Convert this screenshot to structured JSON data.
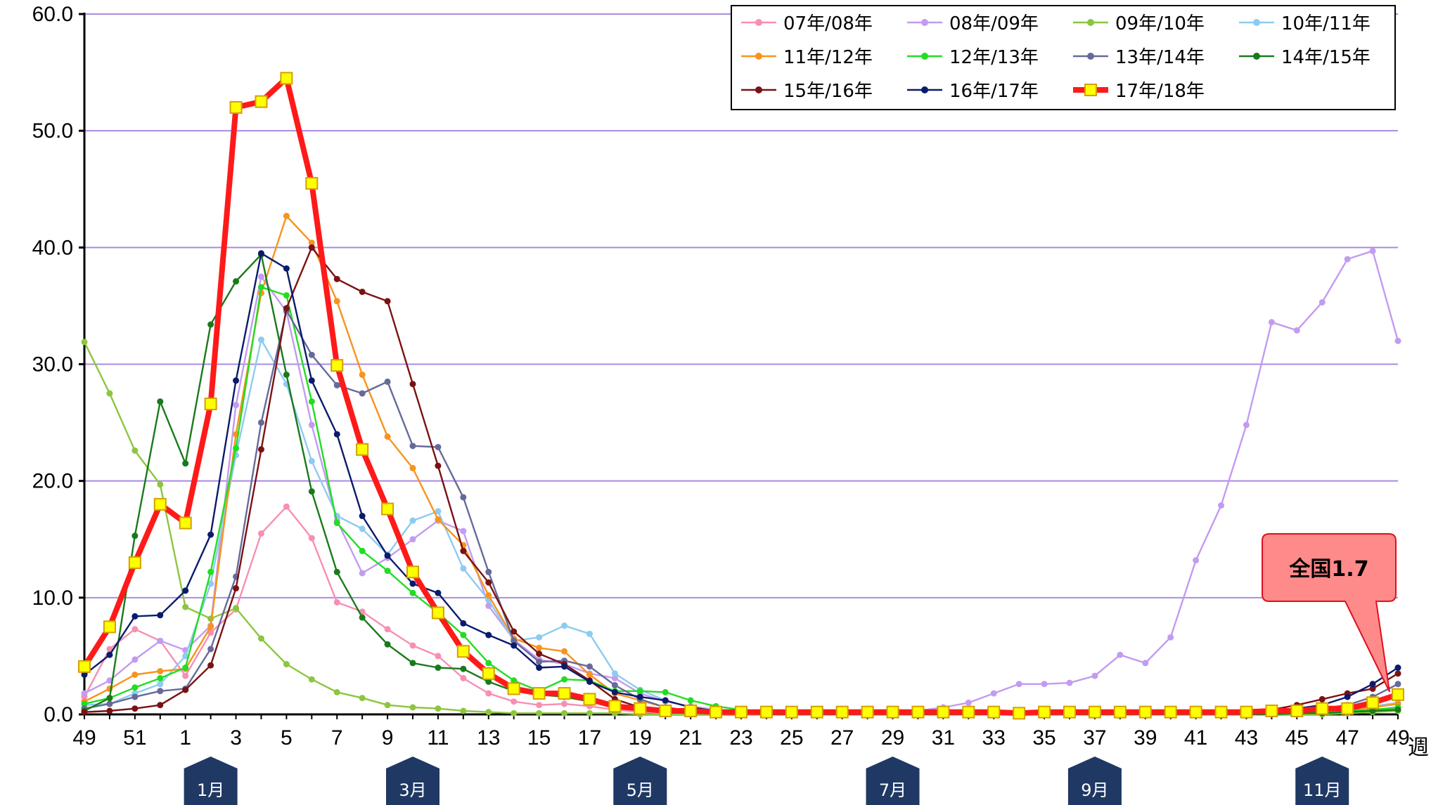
{
  "chart_data": {
    "type": "line",
    "xlabel": "週",
    "ylim": [
      0,
      60
    ],
    "yticks": [
      "0.0",
      "10.0",
      "20.0",
      "30.0",
      "40.0",
      "50.0",
      "60.0"
    ],
    "grid": true,
    "legend_position": "top-right",
    "x": [
      "49",
      "50",
      "51",
      "52",
      "1",
      "2",
      "3",
      "4",
      "5",
      "6",
      "7",
      "8",
      "9",
      "10",
      "11",
      "12",
      "13",
      "14",
      "15",
      "16",
      "17",
      "18",
      "19",
      "20",
      "21",
      "22",
      "23",
      "24",
      "25",
      "26",
      "27",
      "28",
      "29",
      "30",
      "31",
      "32",
      "33",
      "34",
      "35",
      "36",
      "37",
      "38",
      "39",
      "40",
      "41",
      "42",
      "43",
      "44",
      "45",
      "46",
      "47",
      "48",
      "49"
    ],
    "xtick_labels": [
      "49",
      "51",
      "1",
      "3",
      "5",
      "7",
      "9",
      "11",
      "13",
      "15",
      "17",
      "19",
      "21",
      "23",
      "25",
      "27",
      "29",
      "31",
      "33",
      "35",
      "37",
      "39",
      "41",
      "43",
      "45",
      "47",
      "49"
    ],
    "months": [
      {
        "label": "1月",
        "week": "2"
      },
      {
        "label": "3月",
        "week": "10"
      },
      {
        "label": "5月",
        "week": "19"
      },
      {
        "label": "7月",
        "week": "29"
      },
      {
        "label": "9月",
        "week": "37"
      },
      {
        "label": "11月",
        "week": "46"
      }
    ],
    "series": [
      {
        "name": "07年/08年",
        "color": "#f78fb3",
        "values": [
          1.5,
          5.6,
          7.3,
          6.3,
          3.3,
          7.0,
          9.0,
          15.5,
          17.8,
          15.1,
          9.6,
          8.8,
          7.3,
          5.9,
          5.0,
          3.1,
          1.8,
          1.1,
          0.8,
          0.9,
          0.7,
          0.4,
          0.2,
          0.1,
          0.1,
          0.1,
          0.0,
          0.0,
          0.0,
          0.0,
          0.0,
          0.0,
          0.0,
          0.0,
          0.0,
          0.0,
          0.0,
          0.0,
          0.0,
          0.0,
          0.0,
          0.0,
          0.0,
          0.0,
          0.0,
          0.0,
          0.0,
          0.0,
          0.1,
          0.1,
          0.2,
          0.4,
          0.5
        ]
      },
      {
        "name": "08年/09年",
        "color": "#c39bf0",
        "values": [
          1.8,
          2.9,
          4.7,
          6.3,
          5.5,
          7.6,
          26.5,
          37.5,
          34.5,
          24.8,
          16.6,
          12.1,
          13.4,
          15.0,
          16.6,
          15.7,
          9.3,
          6.4,
          4.7,
          4.3,
          3.5,
          3.1,
          1.8,
          1.1,
          0.7,
          0.4,
          0.2,
          0.1,
          0.1,
          0.1,
          0.1,
          0.1,
          0.1,
          0.3,
          0.6,
          1.0,
          1.8,
          2.6,
          2.6,
          2.7,
          3.3,
          5.1,
          4.4,
          6.6,
          13.2,
          17.9,
          24.8,
          33.6,
          32.9,
          35.3,
          39.0,
          39.7,
          32.0
        ]
      },
      {
        "name": "09年/10年",
        "color": "#8cc63f",
        "values": [
          31.9,
          27.5,
          22.6,
          19.7,
          9.2,
          8.2,
          9.1,
          6.5,
          4.3,
          3.0,
          1.9,
          1.4,
          0.8,
          0.6,
          0.5,
          0.3,
          0.2,
          0.1,
          0.1,
          0.1,
          0.1,
          0.1,
          0.0,
          0.0,
          0.0,
          0.0,
          0.0,
          0.0,
          0.0,
          0.0,
          0.0,
          0.0,
          0.0,
          0.0,
          0.0,
          0.0,
          0.0,
          0.0,
          0.0,
          0.0,
          0.0,
          0.0,
          0.0,
          0.0,
          0.0,
          0.0,
          0.0,
          0.0,
          0.0,
          0.0,
          0.1,
          0.2,
          0.3
        ]
      },
      {
        "name": "10年/11年",
        "color": "#8ecbf0",
        "values": [
          0.8,
          0.9,
          1.8,
          2.6,
          5.0,
          11.2,
          22.2,
          32.1,
          28.3,
          21.7,
          17.0,
          15.9,
          13.7,
          16.6,
          17.4,
          12.5,
          9.8,
          6.3,
          6.6,
          7.6,
          6.9,
          3.5,
          2.1,
          1.2,
          0.6,
          0.4,
          0.3,
          0.2,
          0.1,
          0.1,
          0.1,
          0.1,
          0.1,
          0.1,
          0.1,
          0.1,
          0.1,
          0.1,
          0.1,
          0.1,
          0.1,
          0.1,
          0.1,
          0.1,
          0.1,
          0.1,
          0.1,
          0.2,
          0.2,
          0.3,
          0.5,
          0.7,
          1.0
        ]
      },
      {
        "name": "11年/12年",
        "color": "#f7941d",
        "values": [
          1.1,
          2.2,
          3.4,
          3.7,
          3.9,
          7.5,
          24.0,
          36.1,
          42.7,
          40.4,
          35.4,
          29.1,
          23.8,
          21.1,
          16.7,
          14.5,
          10.2,
          6.5,
          5.7,
          5.4,
          3.4,
          1.8,
          1.2,
          0.6,
          0.3,
          0.2,
          0.1,
          0.1,
          0.1,
          0.0,
          0.0,
          0.0,
          0.0,
          0.0,
          0.0,
          0.0,
          0.0,
          0.0,
          0.0,
          0.0,
          0.0,
          0.0,
          0.0,
          0.0,
          0.0,
          0.0,
          0.1,
          0.1,
          0.2,
          0.3,
          0.4,
          0.6,
          0.9
        ]
      },
      {
        "name": "12年/13年",
        "color": "#22dd22",
        "values": [
          0.9,
          1.4,
          2.3,
          3.1,
          4.0,
          12.2,
          22.8,
          36.6,
          35.9,
          26.8,
          16.4,
          14.0,
          12.3,
          10.4,
          8.7,
          6.8,
          4.4,
          2.9,
          2.0,
          3.0,
          2.9,
          2.0,
          2.0,
          1.9,
          1.2,
          0.7,
          0.4,
          0.2,
          0.1,
          0.1,
          0.1,
          0.1,
          0.1,
          0.1,
          0.1,
          0.1,
          0.1,
          0.1,
          0.1,
          0.1,
          0.1,
          0.1,
          0.1,
          0.1,
          0.1,
          0.1,
          0.1,
          0.1,
          0.1,
          0.2,
          0.3,
          0.4,
          0.6
        ]
      },
      {
        "name": "13年/14年",
        "color": "#666a99",
        "values": [
          0.5,
          0.9,
          1.5,
          2.0,
          2.2,
          5.6,
          11.8,
          25.0,
          34.6,
          30.8,
          28.2,
          27.5,
          28.5,
          23.0,
          22.9,
          18.6,
          12.2,
          6.3,
          4.5,
          4.6,
          4.1,
          2.5,
          1.3,
          0.6,
          0.3,
          0.2,
          0.1,
          0.1,
          0.1,
          0.1,
          0.1,
          0.1,
          0.1,
          0.1,
          0.1,
          0.1,
          0.1,
          0.1,
          0.1,
          0.1,
          0.1,
          0.1,
          0.1,
          0.1,
          0.1,
          0.1,
          0.1,
          0.2,
          0.3,
          0.5,
          0.8,
          1.5,
          2.6
        ]
      },
      {
        "name": "14年/15年",
        "color": "#1a7a1a",
        "values": [
          0.3,
          1.4,
          15.3,
          26.8,
          21.5,
          33.4,
          37.1,
          39.4,
          29.1,
          19.1,
          12.2,
          8.3,
          6.0,
          4.4,
          4.0,
          3.9,
          2.8,
          2.0,
          1.7,
          1.5,
          1.1,
          0.6,
          0.4,
          0.2,
          0.1,
          0.1,
          0.1,
          0.0,
          0.0,
          0.0,
          0.0,
          0.0,
          0.0,
          0.0,
          0.0,
          0.0,
          0.0,
          0.0,
          0.0,
          0.0,
          0.0,
          0.0,
          0.0,
          0.0,
          0.0,
          0.0,
          0.0,
          0.0,
          0.1,
          0.1,
          0.2,
          0.3,
          0.4
        ]
      },
      {
        "name": "15年/16年",
        "color": "#7b1113",
        "values": [
          0.2,
          0.3,
          0.5,
          0.8,
          2.1,
          4.2,
          10.8,
          22.7,
          34.8,
          40.0,
          37.3,
          36.2,
          35.4,
          28.3,
          21.3,
          14.0,
          11.3,
          7.1,
          5.2,
          4.3,
          2.9,
          1.3,
          0.6,
          0.3,
          0.2,
          0.1,
          0.1,
          0.1,
          0.1,
          0.1,
          0.1,
          0.1,
          0.1,
          0.1,
          0.1,
          0.1,
          0.1,
          0.1,
          0.1,
          0.1,
          0.1,
          0.1,
          0.1,
          0.1,
          0.1,
          0.1,
          0.2,
          0.4,
          0.8,
          1.3,
          1.8,
          2.2,
          3.5
        ]
      },
      {
        "name": "16年/17年",
        "color": "#0b1b6b",
        "values": [
          3.4,
          5.1,
          8.4,
          8.5,
          10.6,
          15.4,
          28.6,
          39.5,
          38.2,
          28.6,
          24.0,
          17.0,
          13.6,
          11.2,
          10.4,
          7.8,
          6.8,
          5.9,
          4.0,
          4.1,
          2.8,
          1.9,
          1.5,
          1.2,
          0.6,
          0.3,
          0.2,
          0.1,
          0.1,
          0.1,
          0.1,
          0.1,
          0.1,
          0.1,
          0.1,
          0.1,
          0.1,
          0.1,
          0.1,
          0.1,
          0.1,
          0.1,
          0.1,
          0.1,
          0.1,
          0.1,
          0.2,
          0.3,
          0.5,
          0.8,
          1.5,
          2.6,
          4.0
        ]
      },
      {
        "name": "17年/18年",
        "color": "#ff1a1a",
        "values": [
          4.1,
          7.5,
          13.0,
          18.0,
          16.4,
          26.6,
          52.0,
          52.5,
          54.5,
          45.5,
          29.9,
          22.7,
          17.6,
          12.2,
          8.7,
          5.4,
          3.5,
          2.2,
          1.8,
          1.8,
          1.3,
          0.7,
          0.5,
          0.3,
          0.3,
          0.2,
          0.2,
          0.2,
          0.2,
          0.2,
          0.2,
          0.2,
          0.2,
          0.2,
          0.2,
          0.2,
          0.2,
          0.1,
          0.2,
          0.2,
          0.2,
          0.2,
          0.2,
          0.2,
          0.2,
          0.2,
          0.2,
          0.3,
          0.3,
          0.5,
          0.5,
          1.0,
          1.7
        ]
      }
    ],
    "callout": {
      "text": "全国1.7",
      "fill": "#ff8a8a",
      "points_to_week": "49"
    }
  }
}
